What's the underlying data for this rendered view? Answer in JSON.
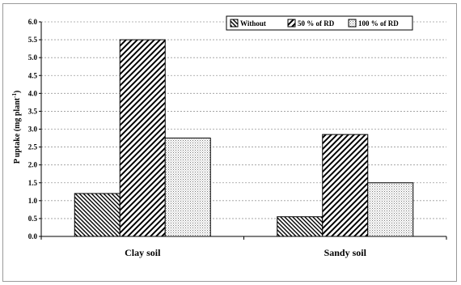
{
  "chart_data": {
    "type": "bar",
    "ylabel": "P uptake (mg plant",
    "ylabel_sup": "-1",
    "ylabel_close": ")",
    "xlabel": "",
    "ylim": [
      0,
      6.0
    ],
    "ytick_step": 0.5,
    "yticks": [
      "0.0",
      "0.5",
      "1.0",
      "1.5",
      "2.0",
      "2.5",
      "3.0",
      "3.5",
      "4.0",
      "4.5",
      "5.0",
      "5.5",
      "6.0"
    ],
    "grid": true,
    "legend_position": "top-right",
    "categories": [
      "Clay soil",
      "Sandy soil"
    ],
    "series": [
      {
        "name": "Without",
        "values": [
          1.2,
          0.55
        ],
        "pattern": "diag-left-dense"
      },
      {
        "name": "50 % of RD",
        "values": [
          5.5,
          2.85
        ],
        "pattern": "diag-right-wide"
      },
      {
        "name": "100 % of RD",
        "values": [
          2.75,
          1.5
        ],
        "pattern": "dots"
      }
    ]
  }
}
